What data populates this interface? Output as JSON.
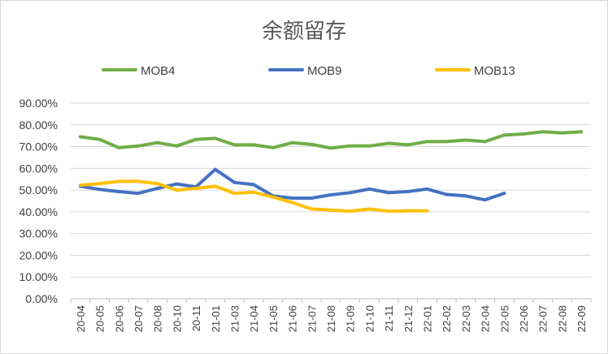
{
  "chart_data": {
    "type": "line",
    "title": "余额留存",
    "categories": [
      "20-04",
      "20-05",
      "20-06",
      "20-07",
      "20-08",
      "20-10",
      "20-11",
      "21-01",
      "21-03",
      "21-04",
      "21-05",
      "21-06",
      "21-07",
      "21-08",
      "21-09",
      "21-10",
      "21-11",
      "21-12",
      "22-01",
      "22-02",
      "22-03",
      "22-04",
      "22-05",
      "22-06",
      "22-07",
      "22-08",
      "22-09"
    ],
    "y_ticks": [
      "0.00%",
      "10.00%",
      "20.00%",
      "30.00%",
      "40.00%",
      "50.00%",
      "60.00%",
      "70.00%",
      "80.00%",
      "90.00%"
    ],
    "ylim": [
      0,
      90
    ],
    "grid": true,
    "legend_position": "top",
    "series": [
      {
        "name": "MOB4",
        "color": "#70ad47",
        "values": [
          74.5,
          73.3,
          69.5,
          70.3,
          71.8,
          70.3,
          73.3,
          73.8,
          70.8,
          70.8,
          69.5,
          71.8,
          71.0,
          69.3,
          70.3,
          70.3,
          71.5,
          70.8,
          72.3,
          72.3,
          73.0,
          72.3,
          75.3,
          75.8,
          76.8,
          76.3,
          76.8
        ]
      },
      {
        "name": "MOB9",
        "color": "#4472c4",
        "values": [
          51.8,
          50.3,
          49.3,
          48.5,
          50.8,
          52.8,
          51.5,
          59.5,
          53.5,
          52.5,
          47.3,
          46.3,
          46.3,
          47.8,
          48.8,
          50.5,
          48.8,
          49.3,
          50.5,
          48.0,
          47.3,
          45.5,
          48.5,
          null,
          null,
          null,
          null
        ]
      },
      {
        "name": "MOB13",
        "color": "#ffc000",
        "values": [
          52.3,
          53.0,
          54.0,
          54.0,
          53.0,
          50.0,
          50.8,
          51.8,
          48.5,
          49.0,
          46.8,
          44.3,
          41.3,
          40.8,
          40.3,
          41.3,
          40.3,
          40.5,
          40.5,
          null,
          null,
          null,
          null,
          null,
          null,
          null,
          null
        ]
      }
    ]
  }
}
